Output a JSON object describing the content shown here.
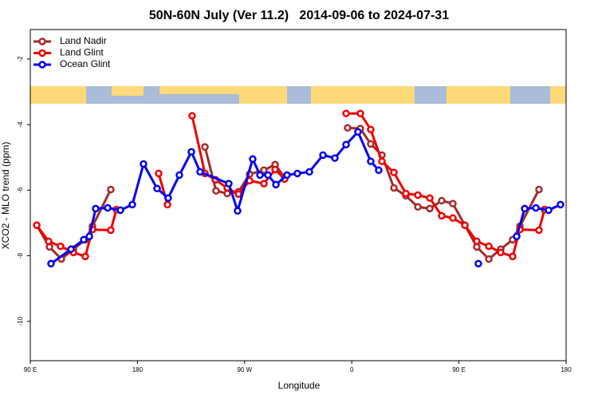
{
  "chart_data": {
    "type": "line",
    "title": "50N-60N July (Ver 11.2)   2014-09-06 to 2024-07-31",
    "xlabel": "Longitude",
    "ylabel": "XCO2 - MLO trend (ppm)",
    "xlim": [
      90,
      540
    ],
    "ylim": [
      -11.2,
      -1.1
    ],
    "xticks": [
      {
        "value": 90,
        "label": "90 E"
      },
      180,
      {
        "value": 270,
        "label": "90 W"
      },
      {
        "value": 360,
        "label": "0"
      },
      {
        "value": 450,
        "label": "90 E"
      },
      {
        "value": 540,
        "label": "180"
      }
    ],
    "yticks": [
      -2,
      -4,
      -6,
      -8,
      -10
    ],
    "grid": false,
    "legend": "top-left",
    "series": [
      {
        "name": "Land Nadir",
        "color": "#a52a2a",
        "x": [
          95.4,
          106.1,
          116.1,
          126.2,
          136.2,
          142.2,
          157.6,
          null,
          236.7,
          246,
          255.4,
          264.8,
          274.2,
          286.2,
          295.6,
          303.6,
          null,
          356.5,
          367.2,
          375.9,
          385.3,
          395.4,
          405.4,
          415.5,
          425.5,
          435.5,
          444.9,
          455,
          465,
          475.1,
          485.1,
          495.1,
          501.2,
          517.2
        ],
        "values": [
          -7.07,
          -7.73,
          -8.1,
          -7.8,
          -7.51,
          -7.1,
          -5.98,
          null,
          -4.68,
          -6.02,
          -6.1,
          -6.05,
          -5.51,
          -5.39,
          -5.22,
          -5.61,
          null,
          -4.1,
          -4.12,
          -4.59,
          -4.93,
          -5.93,
          -6.17,
          -6.51,
          -6.56,
          -6.32,
          -6.41,
          -7.07,
          -7.73,
          -8.1,
          -7.8,
          -7.51,
          -7.1,
          -5.98
        ]
      },
      {
        "name": "Land Glint",
        "color": "#ee0000",
        "x": [
          95.4,
          105.4,
          115.4,
          126.2,
          136.2,
          142.2,
          157.6,
          162.3,
          null,
          197.8,
          205.2,
          null,
          225.9,
          236.7,
          245.4,
          255.4,
          264.8,
          274.2,
          286.2,
          295.6,
          303.6,
          null,
          355.2,
          367.2,
          375.9,
          385.3,
          395.4,
          405.4,
          415.5,
          425.5,
          435.5,
          444.9,
          455,
          465,
          475.1,
          485.1,
          495.1,
          501.2,
          517.2,
          521.9
        ],
        "values": [
          -7.07,
          -7.56,
          -7.71,
          -7.9,
          -8.02,
          -7.2,
          -7.22,
          -6.59,
          null,
          -5.49,
          -6.44,
          null,
          -3.73,
          -5.49,
          -5.68,
          -5.93,
          -6.12,
          -5.71,
          -5.8,
          -5.37,
          -5.66,
          null,
          -3.66,
          -3.66,
          -4.15,
          -5.12,
          -5.46,
          -6.1,
          -6.15,
          -6.24,
          -6.78,
          -6.85,
          -7.07,
          -7.56,
          -7.71,
          -7.9,
          -8.02,
          -7.2,
          -7.22,
          -6.59
        ]
      },
      {
        "name": "Ocean Glint",
        "color": "#0000ee",
        "x": [
          107.4,
          124.2,
          134.9,
          139.6,
          144.9,
          155,
          165.7,
          175.7,
          185.1,
          196.5,
          205.8,
          215.2,
          225.3,
          232.6,
          256.7,
          264.1,
          276.8,
          282.9,
          289.6,
          296.3,
          305.6,
          314.3,
          324.4,
          335.8,
          345.8,
          355.2,
          365.2,
          375.9,
          382.6,
          null,
          466.3,
          null,
          498.5,
          505.2,
          514.6,
          525.3,
          535.3
        ],
        "values": [
          -8.24,
          -7.8,
          -7.51,
          -7.41,
          -6.56,
          -6.54,
          -6.61,
          -6.44,
          -5.2,
          -5.95,
          -6.24,
          -5.54,
          -4.83,
          -5.44,
          -5.8,
          -6.63,
          -5.05,
          -5.54,
          -5.54,
          -5.83,
          -5.54,
          -5.49,
          -5.44,
          -4.93,
          -5.02,
          -4.61,
          -4.22,
          -5.12,
          -5.39,
          null,
          -8.24,
          null,
          -7.41,
          -6.56,
          -6.54,
          -6.61,
          -6.44
        ]
      }
    ]
  }
}
